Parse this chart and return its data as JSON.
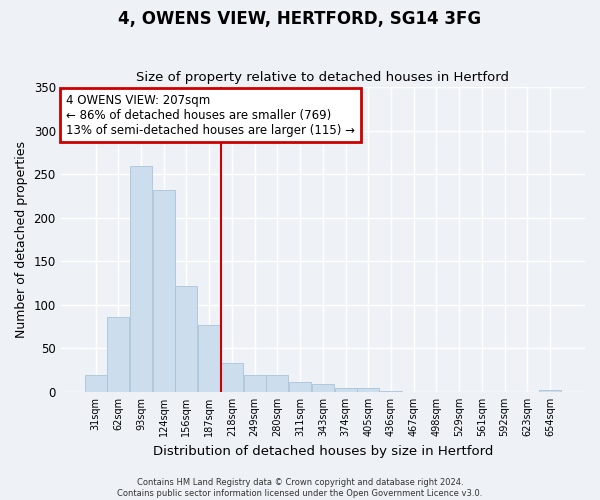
{
  "title": "4, OWENS VIEW, HERTFORD, SG14 3FG",
  "subtitle": "Size of property relative to detached houses in Hertford",
  "xlabel": "Distribution of detached houses by size in Hertford",
  "ylabel": "Number of detached properties",
  "categories": [
    "31sqm",
    "62sqm",
    "93sqm",
    "124sqm",
    "156sqm",
    "187sqm",
    "218sqm",
    "249sqm",
    "280sqm",
    "311sqm",
    "343sqm",
    "374sqm",
    "405sqm",
    "436sqm",
    "467sqm",
    "498sqm",
    "529sqm",
    "561sqm",
    "592sqm",
    "623sqm",
    "654sqm"
  ],
  "values": [
    19,
    86,
    260,
    232,
    122,
    77,
    33,
    20,
    20,
    11,
    9,
    4,
    4,
    1,
    0,
    0,
    0,
    0,
    0,
    0,
    2
  ],
  "bar_color": "#ccdded",
  "bar_edge_color": "#a8c4d8",
  "ylim": [
    0,
    350
  ],
  "yticks": [
    0,
    50,
    100,
    150,
    200,
    250,
    300,
    350
  ],
  "property_line_index": 5.5,
  "property_line_color": "#cc0000",
  "annotation_title": "4 OWENS VIEW: 207sqm",
  "annotation_line1": "← 86% of detached houses are smaller (769)",
  "annotation_line2": "13% of semi-detached houses are larger (115) →",
  "annotation_box_edgecolor": "#cc0000",
  "footer1": "Contains HM Land Registry data © Crown copyright and database right 2024.",
  "footer2": "Contains public sector information licensed under the Open Government Licence v3.0.",
  "background_color": "#eef2f7",
  "grid_color": "#ffffff",
  "plot_bg_color": "#eef2f7"
}
